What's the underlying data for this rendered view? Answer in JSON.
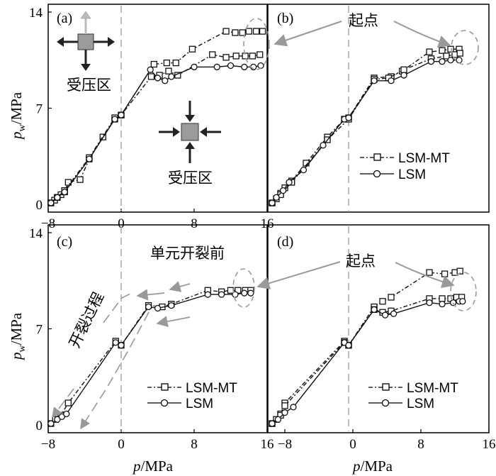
{
  "ylabel_var": "p",
  "ylabel_sub": "w",
  "ylabel_unit": "/MPa",
  "xlabel_var": "p",
  "xlabel_unit": "/MPa",
  "chart_data": [
    {
      "panel": "(a)",
      "type": "line",
      "xlim": [
        -8,
        16
      ],
      "ylim": [
        0,
        14
      ],
      "xticks": [
        -8,
        0,
        8,
        16
      ],
      "yticks": [
        0,
        7,
        14
      ],
      "ref_x": 0,
      "annotations": [
        "受压区",
        "受压区"
      ],
      "series": [
        {
          "marker": "square",
          "points": [
            [
              -7.7,
              0.1
            ],
            [
              -7.3,
              0.3
            ],
            [
              -7.0,
              0.5
            ],
            [
              -6.6,
              0.7
            ],
            [
              -6.2,
              0.9
            ],
            [
              -5.8,
              1.6
            ],
            [
              -4.5,
              1.8
            ],
            [
              -3.5,
              3.3
            ],
            [
              -2.0,
              4.9
            ],
            [
              -0.7,
              6.2
            ],
            [
              0,
              6.5
            ],
            [
              3.6,
              10.2
            ],
            [
              5.0,
              10.3
            ],
            [
              6.0,
              10.3
            ],
            [
              7.8,
              11.3
            ],
            [
              11.5,
              12.6
            ],
            [
              12.5,
              12.5
            ],
            [
              13.3,
              12.5
            ],
            [
              14.0,
              12.6
            ],
            [
              14.8,
              12.6
            ],
            [
              15.5,
              12.6
            ]
          ]
        },
        {
          "marker": "square",
          "points": [
            [
              -7.7,
              0.1
            ],
            [
              -7.0,
              0.5
            ],
            [
              -6.2,
              1.0
            ],
            [
              -3.5,
              3.4
            ],
            [
              -0.7,
              6.3
            ],
            [
              0,
              6.5
            ],
            [
              3.3,
              9.3
            ],
            [
              4.2,
              9.4
            ],
            [
              5.2,
              9.7
            ],
            [
              6.2,
              9.4
            ],
            [
              10.0,
              10.9
            ],
            [
              11.5,
              10.7
            ],
            [
              12.6,
              10.8
            ],
            [
              13.6,
              10.8
            ],
            [
              14.4,
              10.8
            ],
            [
              15.2,
              10.9
            ]
          ]
        },
        {
          "marker": "circle",
          "points": [
            [
              -7.7,
              0.1
            ],
            [
              -7.0,
              0.5
            ],
            [
              -6.2,
              0.9
            ],
            [
              -3.5,
              3.3
            ],
            [
              -0.7,
              6.2
            ],
            [
              0,
              6.5
            ],
            [
              3.2,
              9.8
            ],
            [
              4.0,
              9.2
            ],
            [
              4.8,
              9.0
            ],
            [
              5.5,
              9.3
            ],
            [
              8.0,
              10.0
            ],
            [
              10.5,
              10.0
            ],
            [
              12.0,
              10.1
            ],
            [
              13.5,
              10.0
            ],
            [
              14.5,
              10.0
            ],
            [
              15.3,
              10.1
            ]
          ]
        }
      ]
    },
    {
      "panel": "(b)",
      "type": "line",
      "xlim": [
        -10,
        16
      ],
      "ylim": [
        0,
        14
      ],
      "xticks": [],
      "yticks": [],
      "ref_x": -0.5,
      "annotations": [
        "起点"
      ],
      "legend": [
        "LSM-MT",
        "LSM"
      ],
      "series": [
        {
          "name": "LSM-MT",
          "marker": "square",
          "points": [
            [
              -9.5,
              0.1
            ],
            [
              -9.0,
              0.4
            ],
            [
              -8.5,
              0.8
            ],
            [
              -8.0,
              1.2
            ],
            [
              -7.2,
              1.7
            ],
            [
              -5.5,
              3.0
            ],
            [
              -3.0,
              4.9
            ],
            [
              -1.0,
              6.2
            ],
            [
              -0.5,
              6.3
            ],
            [
              2.5,
              9.2
            ],
            [
              4.5,
              9.3
            ],
            [
              5.8,
              9.7
            ],
            [
              9.0,
              11.1
            ],
            [
              10.5,
              11.2
            ],
            [
              11.5,
              11.3
            ],
            [
              12.5,
              11.3
            ]
          ]
        },
        {
          "name": "LSM-MT",
          "marker": "square",
          "points": [
            [
              -9.5,
              0.1
            ],
            [
              -8.5,
              0.7
            ],
            [
              -7.2,
              1.6
            ],
            [
              -3.0,
              4.7
            ],
            [
              -0.5,
              6.2
            ],
            [
              2.5,
              9.1
            ],
            [
              4.2,
              9.2
            ],
            [
              6.0,
              9.8
            ],
            [
              9.2,
              10.6
            ],
            [
              11.0,
              10.8
            ],
            [
              12.0,
              10.9
            ],
            [
              12.6,
              11.0
            ]
          ]
        },
        {
          "name": "LSM",
          "marker": "circle",
          "points": [
            [
              -9.5,
              0.1
            ],
            [
              -9.0,
              0.5
            ],
            [
              -8.2,
              1.0
            ],
            [
              -7.5,
              1.6
            ],
            [
              -5.8,
              2.5
            ],
            [
              -3.5,
              4.3
            ],
            [
              -1.0,
              6.2
            ],
            [
              -0.5,
              6.3
            ],
            [
              2.5,
              9.0
            ],
            [
              4.5,
              9.0
            ],
            [
              6.0,
              9.4
            ],
            [
              9.2,
              10.4
            ],
            [
              10.5,
              10.4
            ],
            [
              11.5,
              10.5
            ],
            [
              12.5,
              10.5
            ]
          ]
        }
      ]
    },
    {
      "panel": "(c)",
      "type": "line",
      "xlim": [
        -8,
        16
      ],
      "ylim": [
        0,
        14
      ],
      "xticks": [
        -8,
        0,
        8,
        16
      ],
      "yticks": [
        0,
        7,
        14
      ],
      "ref_x": 0,
      "annotations": [
        "单元开裂前",
        "开裂过程"
      ],
      "legend": [
        "LSM-MT",
        "LSM"
      ],
      "series": [
        {
          "name": "LSM-MT",
          "marker": "square",
          "points": [
            [
              -7.7,
              0.1
            ],
            [
              -7.2,
              0.4
            ],
            [
              -6.6,
              0.7
            ],
            [
              -5.8,
              1.6
            ],
            [
              -0.6,
              6.1
            ],
            [
              0,
              5.8
            ],
            [
              3.0,
              8.7
            ],
            [
              4.5,
              8.6
            ],
            [
              5.5,
              8.8
            ],
            [
              9.5,
              9.8
            ],
            [
              11.0,
              9.7
            ],
            [
              12.0,
              9.8
            ],
            [
              12.8,
              9.8
            ],
            [
              13.6,
              9.8
            ],
            [
              14.2,
              9.8
            ]
          ]
        },
        {
          "name": "LSM",
          "marker": "circle",
          "points": [
            [
              -7.7,
              0.1
            ],
            [
              -7.0,
              0.4
            ],
            [
              -6.5,
              0.6
            ],
            [
              -6.0,
              0.8
            ],
            [
              -0.6,
              6.0
            ],
            [
              0,
              5.8
            ],
            [
              3.0,
              8.6
            ],
            [
              4.0,
              8.5
            ],
            [
              5.5,
              8.7
            ],
            [
              9.5,
              9.5
            ],
            [
              11.0,
              9.5
            ],
            [
              12.5,
              9.5
            ],
            [
              13.5,
              9.6
            ],
            [
              14.2,
              9.6
            ]
          ]
        }
      ]
    },
    {
      "panel": "(d)",
      "type": "line",
      "xlim": [
        -10,
        16
      ],
      "ylim": [
        0,
        14
      ],
      "xticks": [
        -8,
        0,
        8,
        16
      ],
      "yticks": [],
      "ref_x": -0.5,
      "annotations": [
        "起点"
      ],
      "legend": [
        "LSM-MT",
        "LSM"
      ],
      "series": [
        {
          "name": "LSM-MT",
          "marker": "square",
          "points": [
            [
              -9.5,
              0.1
            ],
            [
              -9.0,
              0.4
            ],
            [
              -8.5,
              0.8
            ],
            [
              -8.0,
              1.6
            ],
            [
              -1.0,
              6.1
            ],
            [
              -0.5,
              5.8
            ],
            [
              2.5,
              8.6
            ],
            [
              3.5,
              9.0
            ],
            [
              4.5,
              9.3
            ],
            [
              9.0,
              11.1
            ],
            [
              10.8,
              11.0
            ],
            [
              12.0,
              11.1
            ],
            [
              12.6,
              11.2
            ]
          ]
        },
        {
          "name": "LSM-MT",
          "marker": "square",
          "points": [
            [
              -9.5,
              0.1
            ],
            [
              -8.5,
              0.7
            ],
            [
              -8.0,
              1.4
            ],
            [
              -1.0,
              6.0
            ],
            [
              -0.5,
              5.8
            ],
            [
              2.5,
              8.4
            ],
            [
              3.5,
              8.2
            ],
            [
              4.5,
              8.3
            ],
            [
              9.0,
              9.2
            ],
            [
              10.5,
              9.2
            ],
            [
              11.5,
              9.2
            ],
            [
              12.2,
              9.3
            ],
            [
              12.8,
              9.3
            ]
          ]
        },
        {
          "name": "LSM",
          "marker": "circle",
          "points": [
            [
              -9.5,
              0.1
            ],
            [
              -8.8,
              0.4
            ],
            [
              -8.0,
              0.9
            ],
            [
              -7.0,
              1.3
            ],
            [
              -1.0,
              6.0
            ],
            [
              -0.5,
              5.8
            ],
            [
              2.5,
              8.4
            ],
            [
              3.8,
              8.0
            ],
            [
              4.8,
              8.1
            ],
            [
              9.0,
              8.9
            ],
            [
              10.5,
              8.8
            ],
            [
              11.8,
              8.9
            ],
            [
              12.5,
              9.0
            ],
            [
              12.9,
              9.0
            ]
          ]
        }
      ]
    }
  ]
}
